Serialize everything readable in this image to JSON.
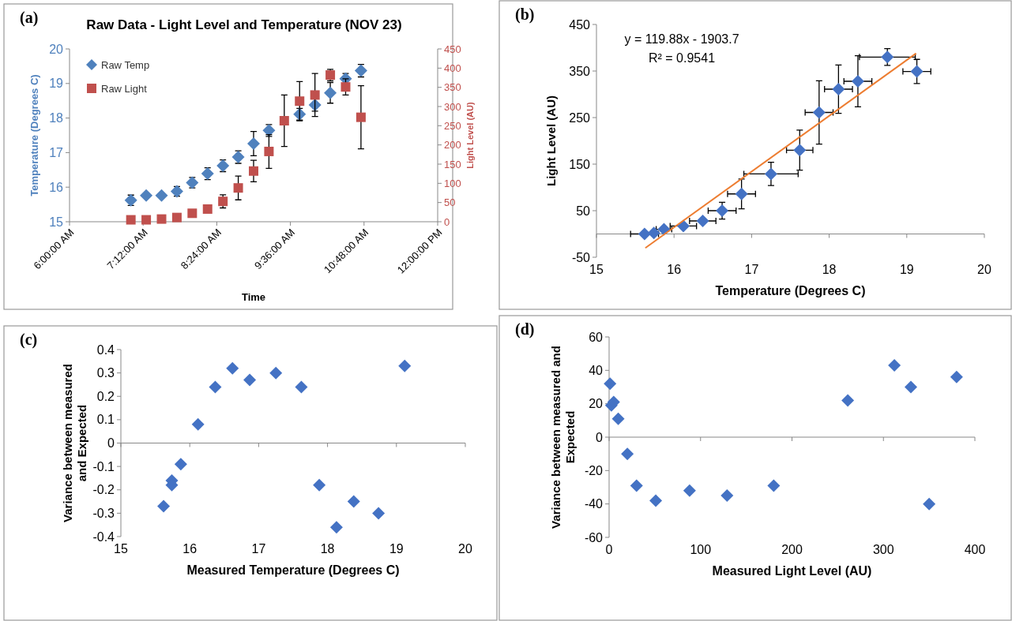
{
  "chart_data": [
    {
      "type": "scatter",
      "title": "Raw Data - Light Level and Temperature (NOV 23)",
      "xlabel": "Time",
      "ylabel": "Temperature (Degrees C)",
      "y2label": "Light Level (AU)",
      "x": [
        7,
        7.25,
        7.5,
        7.75,
        8,
        8.25,
        8.5,
        8.75,
        9,
        9.25,
        9.5,
        9.75,
        10,
        10.25,
        10.5,
        10.75
      ],
      "xlim": [
        6,
        12
      ],
      "xticks": [
        {
          "value": 6,
          "label": "6:00:00 AM"
        },
        {
          "value": 7.2,
          "label": "7:12:00 AM"
        },
        {
          "value": 8.4,
          "label": "8:24:00 AM"
        },
        {
          "value": 9.6,
          "label": "9:36:00 AM"
        },
        {
          "value": 10.8,
          "label": "10:48:00 AM"
        },
        {
          "value": 12,
          "label": "12:00:00 PM"
        }
      ],
      "ylim": [
        15,
        20
      ],
      "yticks": [
        15,
        16,
        17,
        18,
        19,
        20
      ],
      "y2lim": [
        0,
        450
      ],
      "y2ticks": [
        0,
        50,
        100,
        150,
        200,
        250,
        300,
        350,
        400,
        450
      ],
      "legend": "top left",
      "annotations": [
        "(a)"
      ],
      "series": [
        {
          "name": "Raw Temp",
          "color": "#4f81bd",
          "marker": "diamond",
          "values": [
            15.62,
            15.76,
            15.76,
            15.88,
            16.13,
            16.39,
            16.62,
            16.87,
            17.26,
            17.64,
            null,
            18.11,
            18.38,
            18.73,
            19.14,
            19.37
          ],
          "errors": [
            0.15,
            null,
            null,
            0.14,
            0.15,
            0.17,
            0.17,
            0.18,
            0.35,
            0.17,
            null,
            0.17,
            0.18,
            0.3,
            0.15,
            0.18
          ]
        },
        {
          "name": "Raw Light",
          "color": "#c0504d",
          "marker": "square",
          "axis": "y2",
          "values": [
            5,
            5,
            7,
            11,
            22,
            33,
            53,
            88,
            132,
            183,
            263,
            314,
            330,
            382,
            351,
            272
          ],
          "errors": [
            null,
            null,
            null,
            null,
            null,
            null,
            17,
            31,
            28,
            44,
            67,
            51,
            56,
            15,
            21,
            82
          ]
        }
      ]
    },
    {
      "type": "scatter",
      "xlabel": "Temperature (Degrees C)",
      "ylabel": "Light Level (AU)",
      "xlim": [
        15,
        20
      ],
      "xticks": [
        15,
        16,
        17,
        18,
        19,
        20
      ],
      "ylim": [
        -50,
        450
      ],
      "yticks": [
        -50,
        50,
        150,
        250,
        350,
        450
      ],
      "annotations": [
        "(b)",
        "y = 119.88x - 1903.7",
        "R² = 0.9541"
      ],
      "series": [
        {
          "color": "#4472c4",
          "marker": "diamond",
          "x": [
            15.62,
            15.74,
            15.87,
            16.12,
            16.37,
            16.62,
            16.87,
            17.25,
            17.62,
            17.87,
            18.12,
            18.37,
            18.75,
            19.13
          ],
          "values": [
            0,
            2,
            10,
            17,
            28,
            50,
            86,
            129,
            180,
            261,
            311,
            328,
            380,
            349
          ],
          "errors": [
            null,
            null,
            null,
            null,
            null,
            18,
            32,
            25,
            43,
            68,
            52,
            55,
            18,
            26
          ],
          "xerrors": [
            0.18,
            null,
            0.1,
            0.17,
            0.17,
            0.18,
            0.18,
            0.35,
            0.17,
            0.18,
            0.18,
            0.18,
            0.36,
            0.18
          ]
        },
        {
          "type": "line",
          "color": "#ed7d31",
          "x": [
            15.63,
            19.12
          ],
          "values": [
            -30,
            388
          ]
        }
      ]
    },
    {
      "type": "scatter",
      "xlabel": "Measured Temperature (Degrees C)",
      "ylabel": "Variance between measured and Expected",
      "xlim": [
        15,
        20
      ],
      "xticks": [
        15,
        16,
        17,
        18,
        19,
        20
      ],
      "ylim": [
        -0.4,
        0.4
      ],
      "yticks": [
        -0.4,
        -0.3,
        -0.2,
        -0.1,
        0,
        0.1,
        0.2,
        0.3,
        0.4
      ],
      "marker": "diamond",
      "annotations": [
        "(c)"
      ],
      "series": [
        {
          "color": "#4472c4",
          "x": [
            15.62,
            15.74,
            15.74,
            15.87,
            16.12,
            16.37,
            16.62,
            16.87,
            17.25,
            17.62,
            17.88,
            18.13,
            18.38,
            18.74,
            19.12
          ],
          "values": [
            -0.27,
            -0.16,
            -0.18,
            -0.09,
            0.08,
            0.24,
            0.32,
            0.27,
            0.3,
            0.24,
            -0.18,
            -0.36,
            -0.25,
            -0.3,
            0.33
          ]
        }
      ]
    },
    {
      "type": "scatter",
      "xlabel": "Measured Light Level (AU)",
      "ylabel": "Variance between measured and Expected",
      "xlim": [
        0,
        400
      ],
      "xticks": [
        0,
        100,
        200,
        300,
        400
      ],
      "ylim": [
        -60,
        60
      ],
      "yticks": [
        -60,
        -40,
        -20,
        0,
        20,
        40,
        60
      ],
      "marker": "diamond",
      "annotations": [
        "(d)"
      ],
      "series": [
        {
          "color": "#4472c4",
          "x": [
            1,
            2.5,
            5,
            10,
            20,
            30,
            51,
            88,
            129,
            180,
            261,
            312,
            330,
            350,
            380
          ],
          "values": [
            32,
            19,
            21,
            11,
            -10,
            -29,
            -38,
            -32,
            -35,
            -29,
            22,
            43,
            30,
            -40,
            36
          ]
        }
      ]
    }
  ]
}
